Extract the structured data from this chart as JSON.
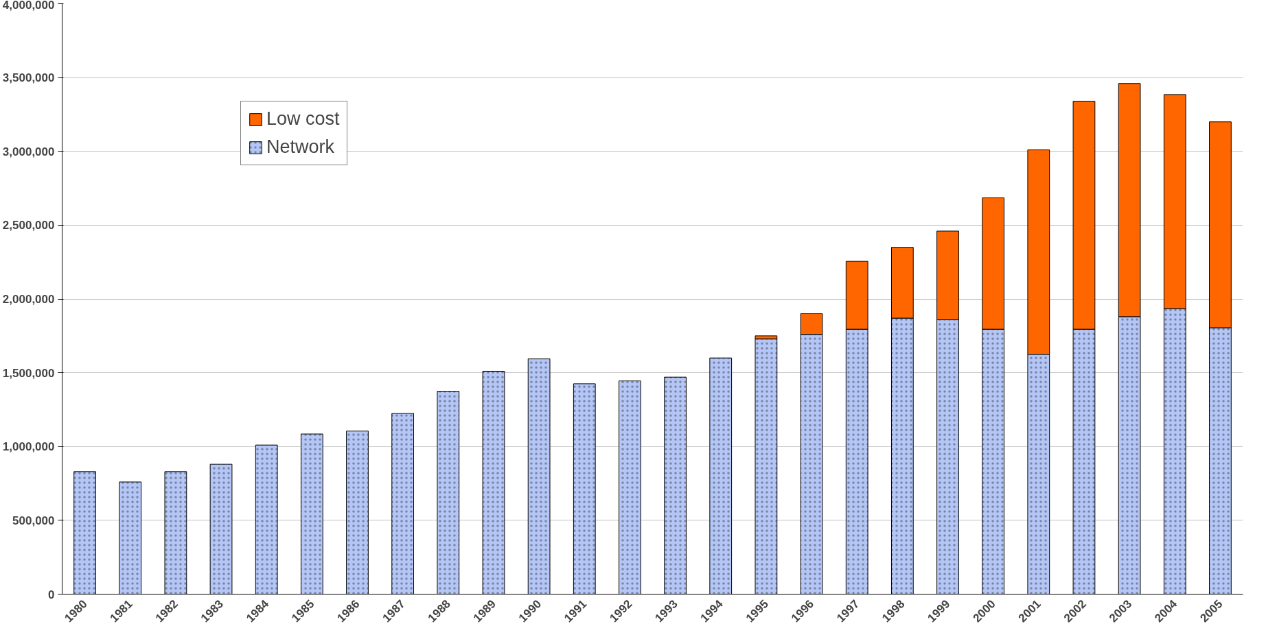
{
  "chart_data": {
    "type": "bar",
    "stacked": true,
    "categories": [
      "1980",
      "1981",
      "1982",
      "1983",
      "1984",
      "1985",
      "1986",
      "1987",
      "1988",
      "1989",
      "1990",
      "1991",
      "1992",
      "1993",
      "1994",
      "1995",
      "1996",
      "1997",
      "1998",
      "1999",
      "2000",
      "2001",
      "2002",
      "2003",
      "2004",
      "2005"
    ],
    "series": [
      {
        "name": "Network",
        "color": "#b4c6f6",
        "values": [
          830000,
          760000,
          830000,
          880000,
          1010000,
          1085000,
          1105000,
          1225000,
          1375000,
          1510000,
          1595000,
          1425000,
          1445000,
          1470000,
          1600000,
          1730000,
          1760000,
          1795000,
          1870000,
          1860000,
          1795000,
          1625000,
          1795000,
          1880000,
          1935000,
          1805000
        ]
      },
      {
        "name": "Low cost",
        "color": "#ff6600",
        "values": [
          null,
          null,
          null,
          null,
          null,
          null,
          null,
          null,
          null,
          null,
          null,
          null,
          null,
          null,
          null,
          20000,
          140000,
          460000,
          480000,
          600000,
          890000,
          1385000,
          1545000,
          1580000,
          1450000,
          1395000
        ]
      }
    ],
    "ylim": [
      0,
      4000000
    ],
    "yticks": [
      {
        "value": 0,
        "label": "0"
      },
      {
        "value": 500000,
        "label": "500,000"
      },
      {
        "value": 1000000,
        "label": "1,000,000"
      },
      {
        "value": 1500000,
        "label": "1,500,000"
      },
      {
        "value": 2000000,
        "label": "2,000,000"
      },
      {
        "value": 2500000,
        "label": "2,500,000"
      },
      {
        "value": 3000000,
        "label": "3,000,000"
      },
      {
        "value": 3500000,
        "label": "3,500,000"
      },
      {
        "value": 4000000,
        "label": "4,000,000"
      }
    ],
    "grid": "y",
    "legend": "top left"
  }
}
